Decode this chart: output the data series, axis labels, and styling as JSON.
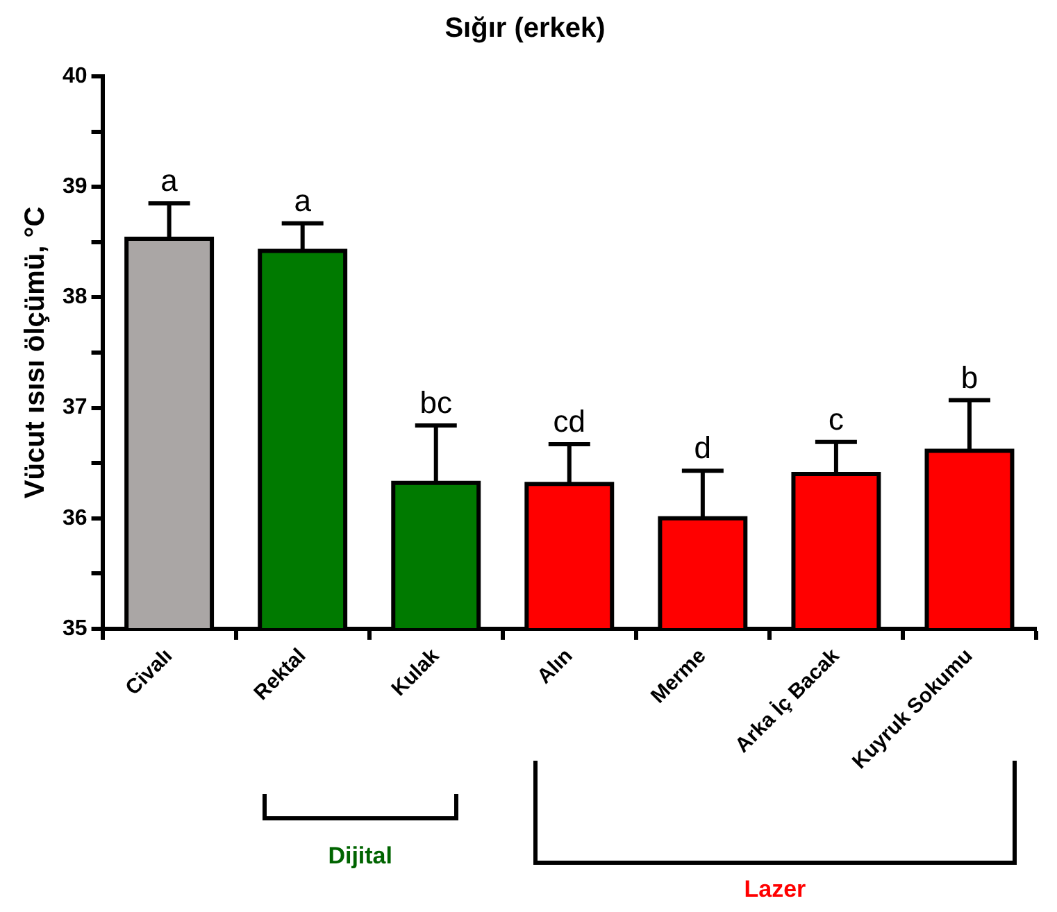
{
  "chart_data": {
    "type": "bar",
    "title": "Sığır (erkek)",
    "ylabel": "Vücut ısısı ölçümü, °C",
    "categories": [
      "Civalı",
      "Rektal",
      "Kulak",
      "Alın",
      "Merme",
      "Arka İç Bacak",
      "Kuyruk Sokumu"
    ],
    "values": [
      38.53,
      38.42,
      36.32,
      36.31,
      36.0,
      36.4,
      36.61
    ],
    "colors": [
      "#aaa6a5",
      "#007a00",
      "#007a00",
      "#ff0000",
      "#ff0000",
      "#ff0000",
      "#ff0000"
    ],
    "errors": [
      [
        38.53,
        38.85
      ],
      [
        38.42,
        38.67
      ],
      [
        36.32,
        36.84
      ],
      [
        36.31,
        36.67
      ],
      [
        36.0,
        36.43
      ],
      [
        36.4,
        36.69
      ],
      [
        36.61,
        37.07
      ]
    ],
    "value_labels": [
      "a",
      "a",
      "bc",
      "cd",
      "d",
      "c",
      "b"
    ],
    "ylim": [
      35,
      40
    ],
    "yticks": [
      35,
      {
        "value": 35.5,
        "label": null
      },
      36,
      {
        "value": 36.5,
        "label": null
      },
      37,
      {
        "value": 37.5,
        "label": null
      },
      38,
      {
        "value": 38.5,
        "label": null
      },
      39,
      {
        "value": 39.5,
        "label": null
      },
      40
    ],
    "grid": false,
    "annotations": [
      "Dijital",
      "Lazer"
    ]
  }
}
